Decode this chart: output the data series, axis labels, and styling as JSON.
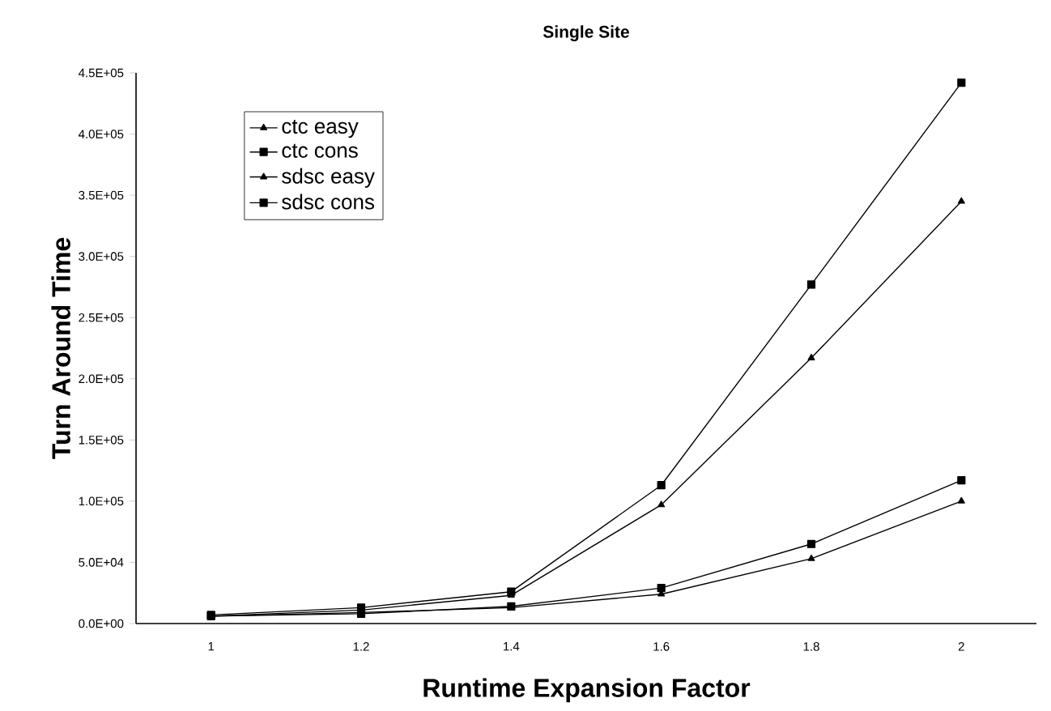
{
  "chart_data": {
    "type": "line",
    "title": "Single Site",
    "xlabel": "Runtime Expansion Factor",
    "ylabel": "Turn Around Time",
    "categories": [
      "1",
      "1.2",
      "1.4",
      "1.6",
      "1.8",
      "2"
    ],
    "series": [
      {
        "name": "ctc easy",
        "color": "#000000",
        "marker": "triangle",
        "values": [
          6000,
          9000,
          13000,
          24000,
          53000,
          100000
        ]
      },
      {
        "name": "ctc cons",
        "color": "#000000",
        "marker": "square",
        "values": [
          6000,
          8000,
          14000,
          29000,
          65000,
          117000
        ]
      },
      {
        "name": "sdsc easy",
        "color": "#000000",
        "marker": "triangle",
        "values": [
          6000,
          11000,
          23000,
          97000,
          217000,
          345000
        ]
      },
      {
        "name": "sdsc cons",
        "color": "#000000",
        "marker": "square",
        "values": [
          7000,
          13000,
          26000,
          113000,
          277000,
          442000
        ]
      }
    ],
    "ylim": [
      0,
      450000
    ],
    "yticks": [
      {
        "value": 0,
        "label": "0.0E+00"
      },
      {
        "value": 50000,
        "label": "5.0E+04"
      },
      {
        "value": 100000,
        "label": "1.0E+05"
      },
      {
        "value": 150000,
        "label": "1.5E+05"
      },
      {
        "value": 200000,
        "label": "2.0E+05"
      },
      {
        "value": 250000,
        "label": "2.5E+05"
      },
      {
        "value": 300000,
        "label": "3.0E+05"
      },
      {
        "value": 350000,
        "label": "3.5E+05"
      },
      {
        "value": 400000,
        "label": "4.0E+05"
      },
      {
        "value": 450000,
        "label": "4.5E+05"
      }
    ],
    "legend": "top left",
    "grid": false,
    "line_style": "solid"
  }
}
